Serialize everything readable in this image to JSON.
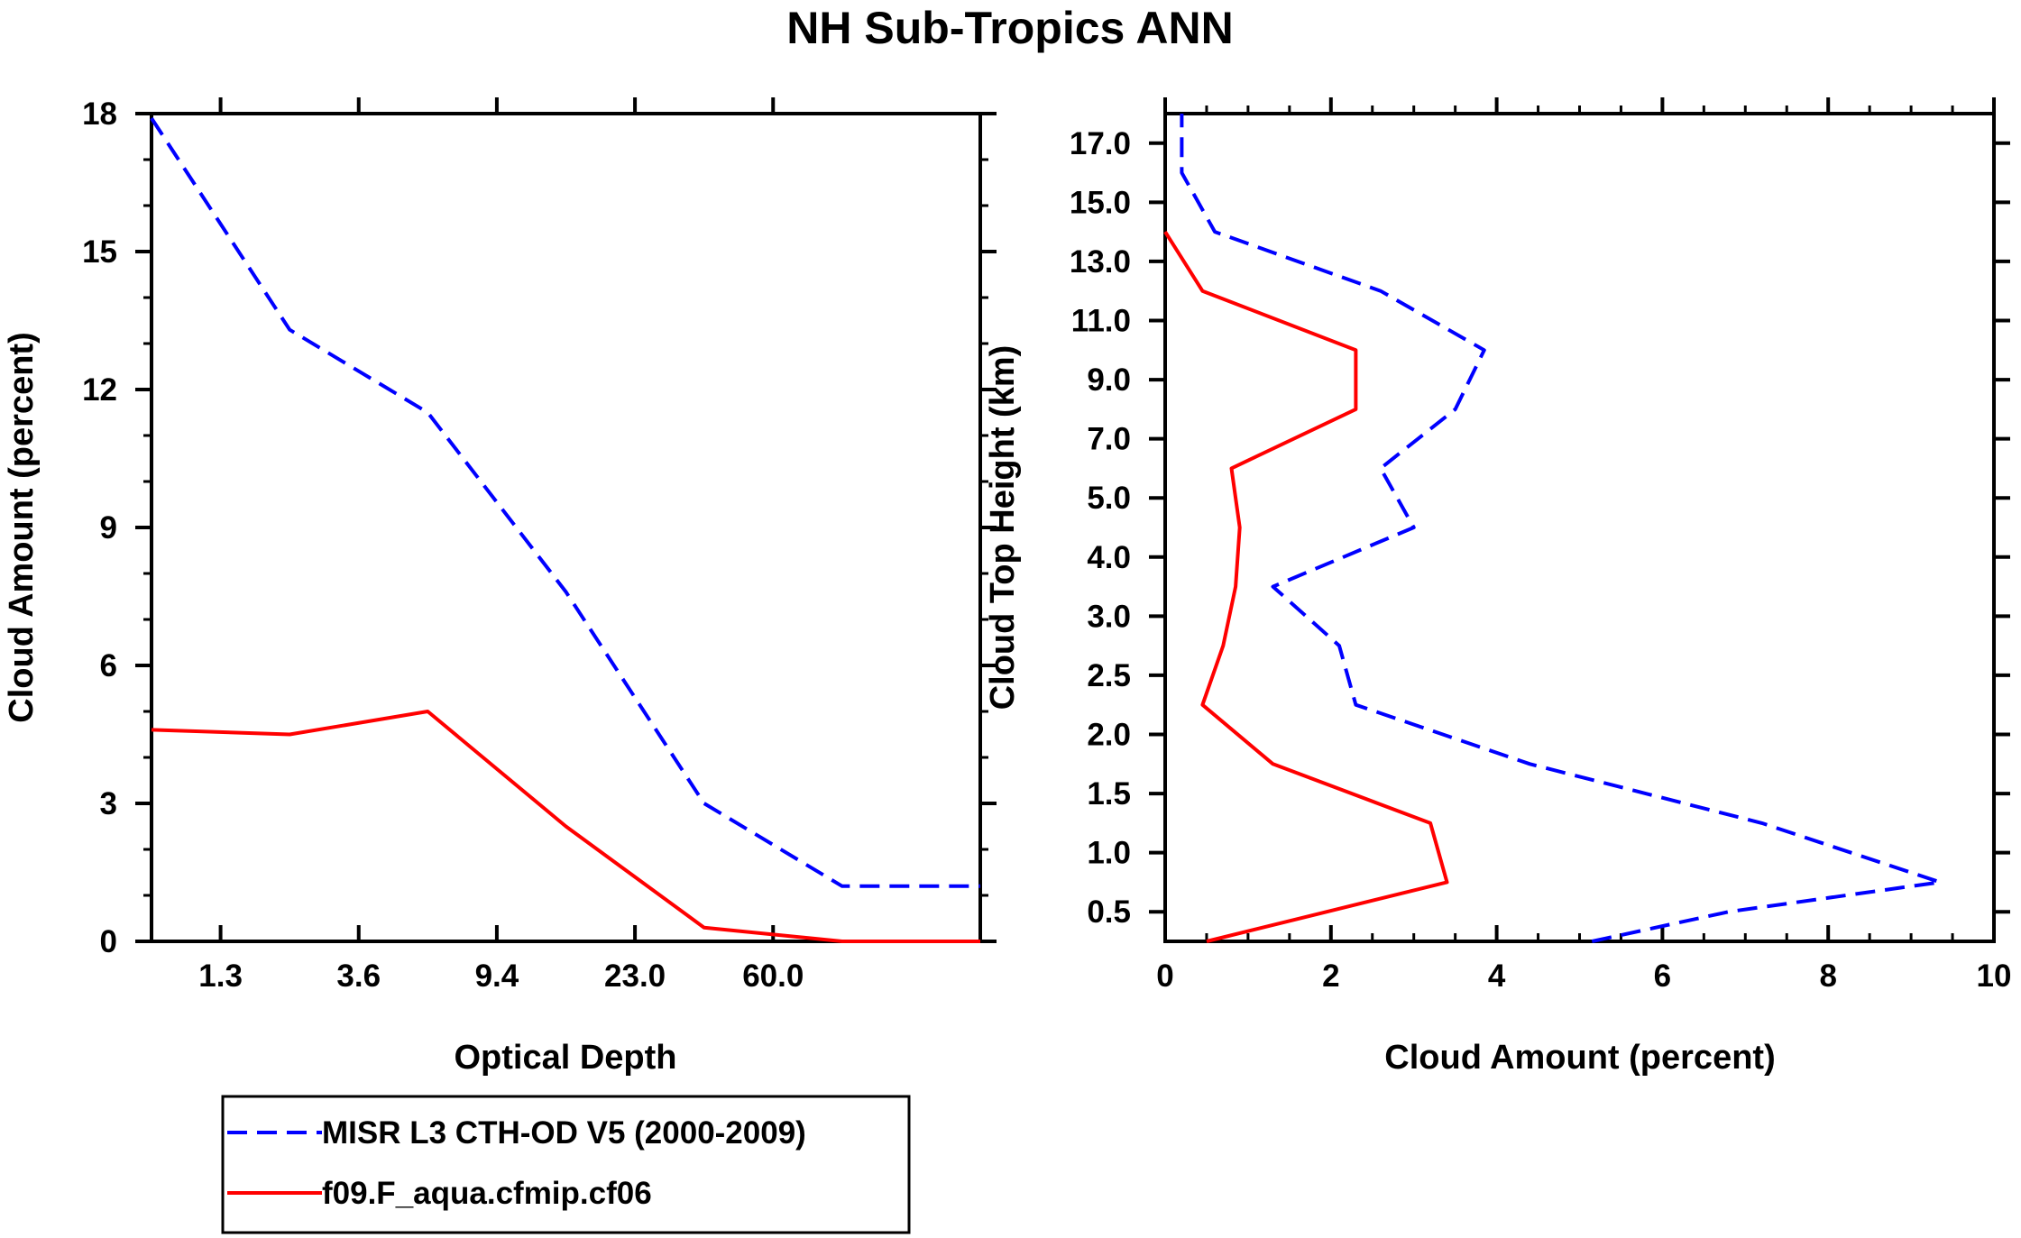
{
  "title": "NH Sub-Tropics ANN",
  "colors": {
    "misr": "#0000ff",
    "model": "#ff0000",
    "axis": "#000000"
  },
  "legend": {
    "entries": [
      {
        "label": "MISR L3 CTH-OD V5 (2000-2009)",
        "color": "#0000ff",
        "style": "dashed"
      },
      {
        "label": "f09.F_aqua.cfmip.cf06",
        "color": "#ff0000",
        "style": "solid"
      }
    ]
  },
  "chart_data": [
    {
      "type": "line",
      "xlabel": "Optical Depth",
      "ylabel": "Cloud Amount (percent)",
      "x_index": [
        0,
        1,
        2,
        3,
        4,
        5
      ],
      "xlim": [
        -0.5,
        5.5
      ],
      "ylim": [
        0,
        18
      ],
      "x_tick_labels": [
        "1.3",
        "3.6",
        "9.4",
        "23.0",
        "60.0"
      ],
      "x_tick_positions": [
        0,
        1,
        2,
        3,
        4
      ],
      "y_ticks": [
        0,
        3,
        6,
        9,
        12,
        15,
        18
      ],
      "series": [
        {
          "name": "MISR L3 CTH-OD V5 (2000-2009)",
          "x": [
            -0.5,
            0.5,
            1.5,
            2.5,
            3.5,
            4.5,
            5.5
          ],
          "values": [
            17.9,
            13.3,
            11.5,
            7.6,
            3.0,
            1.2,
            1.2
          ]
        },
        {
          "name": "f09.F_aqua.cfmip.cf06",
          "x": [
            -0.5,
            0.5,
            1.5,
            2.5,
            3.5,
            4.5,
            5.5
          ],
          "values": [
            4.6,
            4.5,
            5.0,
            2.5,
            0.3,
            0.0,
            0.0
          ]
        }
      ]
    },
    {
      "type": "line",
      "xlabel": "Cloud Amount (percent)",
      "ylabel": "Cloud Top Height (km)",
      "xlim": [
        0,
        10
      ],
      "ylim": [
        0,
        14
      ],
      "x_ticks": [
        0,
        2,
        4,
        6,
        8,
        10
      ],
      "y_tick_labels": [
        "0.5",
        "1.0",
        "1.5",
        "2.0",
        "2.5",
        "3.0",
        "4.0",
        "5.0",
        "7.0",
        "9.0",
        "11.0",
        "13.0",
        "15.0",
        "17.0"
      ],
      "y_tick_positions": [
        0.5,
        1.5,
        2.5,
        3.5,
        4.5,
        5.5,
        6.5,
        7.5,
        8.5,
        9.5,
        10.5,
        11.5,
        12.5,
        13.5
      ],
      "series": [
        {
          "name": "MISR L3 CTH-OD V5 (2000-2009)",
          "y": [
            0,
            0.5,
            1.0,
            2.0,
            3.0,
            4.0,
            5.0,
            6.0,
            7.0,
            8.0,
            9.0,
            10.0,
            11.0,
            12.0,
            13.0,
            14.0
          ],
          "values": [
            5.15,
            6.8,
            9.35,
            7.2,
            4.4,
            2.3,
            2.1,
            1.3,
            3.0,
            2.6,
            3.5,
            3.85,
            2.6,
            0.6,
            0.2,
            0.2
          ]
        },
        {
          "name": "f09.F_aqua.cfmip.cf06",
          "y": [
            0,
            1.0,
            2.0,
            3.0,
            4.0,
            5.0,
            6.0,
            7.0,
            8.0,
            9.0,
            10.0,
            11.0,
            12.0
          ],
          "values": [
            0.5,
            3.4,
            3.2,
            1.3,
            0.45,
            0.7,
            0.85,
            0.9,
            0.8,
            2.3,
            2.3,
            0.45,
            0.0
          ]
        }
      ]
    }
  ]
}
